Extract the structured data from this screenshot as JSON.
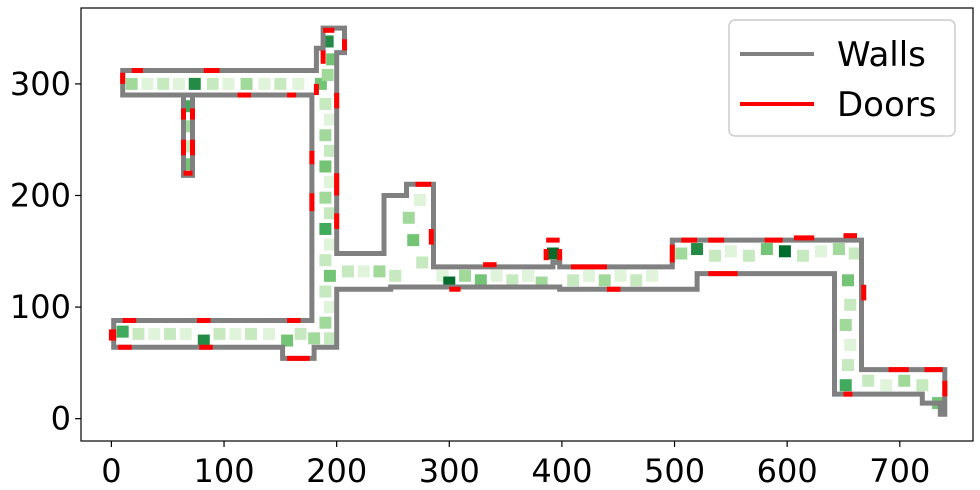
{
  "chart_data": {
    "type": "line",
    "title": "",
    "xlabel": "",
    "ylabel": "",
    "xlim": [
      -27,
      765
    ],
    "ylim": [
      -20,
      368
    ],
    "xticks": [
      0,
      100,
      200,
      300,
      400,
      500,
      600,
      700
    ],
    "yticks": [
      0,
      100,
      200,
      300
    ],
    "grid": false,
    "legend": {
      "placement": "top-right",
      "entries": [
        {
          "name": "Walls",
          "color": "#808080"
        },
        {
          "name": "Doors",
          "color": "#ff0000"
        }
      ]
    },
    "colors": {
      "walls": "#808080",
      "doors": "#ff0000",
      "heat": [
        "#f2faf0",
        "#e0f3db",
        "#c7e9c0",
        "#a1d99b",
        "#74c476",
        "#41ab5d",
        "#238b45",
        "#006d2c"
      ]
    },
    "walls": [
      [
        [
          10,
          88
        ],
        [
          178,
          88
        ],
        [
          178,
          290
        ],
        [
          10,
          290
        ],
        [
          10,
          312
        ],
        [
          182,
          312
        ],
        [
          182,
          332
        ],
        [
          188,
          332
        ],
        [
          188,
          350
        ],
        [
          207,
          350
        ],
        [
          207,
          328
        ],
        [
          200,
          328
        ],
        [
          200,
          148
        ],
        [
          242,
          148
        ],
        [
          242,
          200
        ],
        [
          262,
          200
        ],
        [
          262,
          210
        ],
        [
          286,
          210
        ],
        [
          286,
          136
        ],
        [
          392,
          136
        ],
        [
          392,
          140
        ],
        [
          398,
          140
        ],
        [
          398,
          136
        ],
        [
          498,
          136
        ],
        [
          498,
          160
        ],
        [
          666,
          160
        ],
        [
          666,
          44
        ],
        [
          740,
          44
        ],
        [
          740,
          4
        ],
        [
          736,
          4
        ],
        [
          736,
          14
        ],
        [
          720,
          14
        ],
        [
          720,
          22
        ],
        [
          642,
          22
        ],
        [
          642,
          130
        ],
        [
          520,
          130
        ],
        [
          520,
          116
        ],
        [
          398,
          116
        ],
        [
          398,
          118
        ],
        [
          248,
          118
        ],
        [
          248,
          116
        ],
        [
          200,
          116
        ],
        [
          200,
          64
        ],
        [
          180,
          64
        ],
        [
          180,
          54
        ],
        [
          152,
          54
        ],
        [
          152,
          64
        ],
        [
          2,
          64
        ],
        [
          2,
          88
        ],
        [
          10,
          88
        ]
      ],
      [
        [
          64,
          288
        ],
        [
          64,
          218
        ],
        [
          72,
          218
        ],
        [
          72,
          288
        ]
      ]
    ],
    "doors": [
      [
        [
          10,
          300
        ],
        [
          10,
          310
        ]
      ],
      [
        [
          18,
          312
        ],
        [
          28,
          312
        ]
      ],
      [
        [
          82,
          312
        ],
        [
          96,
          312
        ]
      ],
      [
        [
          64,
          278
        ],
        [
          64,
          268
        ]
      ],
      [
        [
          72,
          278
        ],
        [
          72,
          268
        ]
      ],
      [
        [
          64,
          250
        ],
        [
          64,
          236
        ]
      ],
      [
        [
          72,
          250
        ],
        [
          72,
          236
        ]
      ],
      [
        [
          64,
          220
        ],
        [
          72,
          220
        ]
      ],
      [
        [
          112,
          290
        ],
        [
          124,
          290
        ]
      ],
      [
        [
          156,
          290
        ],
        [
          164,
          290
        ]
      ],
      [
        [
          178,
          240
        ],
        [
          178,
          228
        ]
      ],
      [
        [
          178,
          202
        ],
        [
          178,
          186
        ]
      ],
      [
        [
          200,
          292
        ],
        [
          200,
          278
        ]
      ],
      [
        [
          200,
          220
        ],
        [
          200,
          200
        ]
      ],
      [
        [
          200,
          184
        ],
        [
          200,
          170
        ]
      ],
      [
        [
          188,
          348
        ],
        [
          198,
          348
        ]
      ],
      [
        [
          207,
          340
        ],
        [
          207,
          330
        ]
      ],
      [
        [
          188,
          330
        ],
        [
          188,
          318
        ]
      ],
      [
        [
          182,
          300
        ],
        [
          182,
          290
        ]
      ],
      [
        [
          0,
          80
        ],
        [
          0,
          70
        ]
      ],
      [
        [
          2,
          80
        ],
        [
          2,
          70
        ]
      ],
      [
        [
          6,
          64
        ],
        [
          18,
          64
        ]
      ],
      [
        [
          10,
          88
        ],
        [
          22,
          88
        ]
      ],
      [
        [
          76,
          88
        ],
        [
          88,
          88
        ]
      ],
      [
        [
          78,
          64
        ],
        [
          90,
          64
        ]
      ],
      [
        [
          156,
          88
        ],
        [
          168,
          88
        ]
      ],
      [
        [
          156,
          54
        ],
        [
          176,
          54
        ]
      ],
      [
        [
          270,
          210
        ],
        [
          284,
          210
        ]
      ],
      [
        [
          284,
          170
        ],
        [
          284,
          156
        ]
      ],
      [
        [
          300,
          116
        ],
        [
          310,
          116
        ]
      ],
      [
        [
          330,
          138
        ],
        [
          342,
          138
        ]
      ],
      [
        [
          386,
          160
        ],
        [
          398,
          160
        ]
      ],
      [
        [
          386,
          152
        ],
        [
          386,
          142
        ]
      ],
      [
        [
          398,
          152
        ],
        [
          398,
          142
        ]
      ],
      [
        [
          408,
          136
        ],
        [
          440,
          136
        ]
      ],
      [
        [
          440,
          116
        ],
        [
          452,
          116
        ]
      ],
      [
        [
          498,
          156
        ],
        [
          498,
          140
        ]
      ],
      [
        [
          506,
          160
        ],
        [
          520,
          160
        ]
      ],
      [
        [
          530,
          160
        ],
        [
          544,
          160
        ]
      ],
      [
        [
          580,
          160
        ],
        [
          596,
          160
        ]
      ],
      [
        [
          606,
          162
        ],
        [
          624,
          162
        ]
      ],
      [
        [
          650,
          164
        ],
        [
          662,
          164
        ]
      ],
      [
        [
          530,
          130
        ],
        [
          556,
          130
        ]
      ],
      [
        [
          668,
          120
        ],
        [
          668,
          106
        ]
      ],
      [
        [
          650,
          22
        ],
        [
          658,
          22
        ]
      ],
      [
        [
          690,
          44
        ],
        [
          708,
          44
        ]
      ],
      [
        [
          722,
          44
        ],
        [
          738,
          44
        ]
      ],
      [
        [
          740,
          34
        ],
        [
          740,
          20
        ]
      ]
    ],
    "heat_cells": [
      [
        18,
        300,
        3
      ],
      [
        32,
        300,
        1
      ],
      [
        46,
        300,
        2
      ],
      [
        60,
        300,
        1
      ],
      [
        74,
        300,
        6
      ],
      [
        90,
        300,
        2
      ],
      [
        104,
        300,
        1
      ],
      [
        120,
        300,
        3
      ],
      [
        136,
        300,
        1
      ],
      [
        150,
        300,
        2
      ],
      [
        166,
        300,
        1
      ],
      [
        186,
        300,
        4
      ],
      [
        68,
        280,
        5
      ],
      [
        68,
        262,
        3
      ],
      [
        68,
        244,
        2
      ],
      [
        68,
        228,
        4
      ],
      [
        192,
        338,
        6
      ],
      [
        196,
        322,
        4
      ],
      [
        192,
        308,
        3
      ],
      [
        190,
        282,
        2
      ],
      [
        194,
        268,
        1
      ],
      [
        190,
        254,
        3
      ],
      [
        194,
        240,
        2
      ],
      [
        190,
        226,
        4
      ],
      [
        194,
        212,
        1
      ],
      [
        190,
        198,
        3
      ],
      [
        194,
        184,
        2
      ],
      [
        190,
        170,
        5
      ],
      [
        194,
        156,
        1
      ],
      [
        190,
        142,
        2
      ],
      [
        194,
        128,
        4
      ],
      [
        190,
        114,
        2
      ],
      [
        194,
        100,
        1
      ],
      [
        190,
        86,
        3
      ],
      [
        194,
        72,
        2
      ],
      [
        10,
        78,
        5
      ],
      [
        24,
        76,
        2
      ],
      [
        38,
        76,
        1
      ],
      [
        52,
        76,
        2
      ],
      [
        66,
        76,
        1
      ],
      [
        82,
        70,
        6
      ],
      [
        96,
        76,
        2
      ],
      [
        110,
        76,
        1
      ],
      [
        124,
        76,
        2
      ],
      [
        140,
        76,
        1
      ],
      [
        156,
        70,
        4
      ],
      [
        168,
        76,
        2
      ],
      [
        180,
        72,
        3
      ],
      [
        210,
        132,
        2
      ],
      [
        224,
        132,
        1
      ],
      [
        238,
        132,
        3
      ],
      [
        252,
        128,
        2
      ],
      [
        264,
        180,
        3
      ],
      [
        268,
        160,
        4
      ],
      [
        274,
        196,
        1
      ],
      [
        276,
        140,
        2
      ],
      [
        294,
        128,
        1
      ],
      [
        300,
        122,
        7
      ],
      [
        314,
        128,
        3
      ],
      [
        328,
        124,
        4
      ],
      [
        342,
        128,
        1
      ],
      [
        356,
        124,
        2
      ],
      [
        370,
        128,
        1
      ],
      [
        382,
        122,
        3
      ],
      [
        392,
        148,
        7
      ],
      [
        410,
        124,
        2
      ],
      [
        424,
        128,
        1
      ],
      [
        438,
        124,
        3
      ],
      [
        452,
        128,
        1
      ],
      [
        466,
        124,
        2
      ],
      [
        480,
        128,
        1
      ],
      [
        506,
        148,
        3
      ],
      [
        520,
        152,
        6
      ],
      [
        536,
        146,
        2
      ],
      [
        550,
        150,
        1
      ],
      [
        566,
        146,
        2
      ],
      [
        582,
        152,
        4
      ],
      [
        598,
        150,
        7
      ],
      [
        614,
        146,
        2
      ],
      [
        630,
        150,
        1
      ],
      [
        646,
        152,
        3
      ],
      [
        660,
        148,
        2
      ],
      [
        654,
        124,
        4
      ],
      [
        656,
        102,
        2
      ],
      [
        652,
        84,
        3
      ],
      [
        656,
        66,
        1
      ],
      [
        654,
        48,
        2
      ],
      [
        652,
        30,
        5
      ],
      [
        672,
        34,
        2
      ],
      [
        688,
        30,
        1
      ],
      [
        704,
        34,
        3
      ],
      [
        720,
        30,
        2
      ],
      [
        734,
        14,
        4
      ]
    ]
  }
}
